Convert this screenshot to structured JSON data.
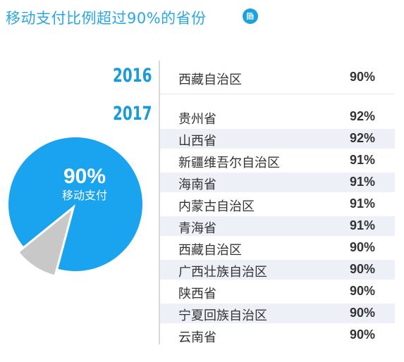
{
  "title": "移动支付比例超过90%的省份",
  "icon": "document-icon",
  "colors": {
    "accent": "#29a8e0",
    "pie_main": "#1aa3ee",
    "pie_rest": "#c8c8c8",
    "row_shade": "#eef0f8"
  },
  "pie": {
    "value_label": "90%",
    "caption": "移动支付"
  },
  "chart_data": {
    "type": "table",
    "groups": [
      {
        "year": "2016",
        "rows": [
          {
            "province": "西藏自治区",
            "value": "90%"
          }
        ]
      },
      {
        "year": "2017",
        "rows": [
          {
            "province": "贵州省",
            "value": "92%"
          },
          {
            "province": "山西省",
            "value": "92%"
          },
          {
            "province": "新疆维吾尔自治区",
            "value": "91%"
          },
          {
            "province": "海南省",
            "value": "91%"
          },
          {
            "province": "内蒙古自治区",
            "value": "91%"
          },
          {
            "province": "青海省",
            "value": "91%"
          },
          {
            "province": "西藏自治区",
            "value": "90%"
          },
          {
            "province": "广西壮族自治区",
            "value": "90%"
          },
          {
            "province": "陕西省",
            "value": "90%"
          },
          {
            "province": "宁夏回族自治区",
            "value": "90%"
          },
          {
            "province": "云南省",
            "value": "90%"
          }
        ]
      }
    ],
    "pie": {
      "type": "pie",
      "values": [
        90,
        10
      ],
      "labels": [
        "移动支付",
        ""
      ]
    }
  }
}
